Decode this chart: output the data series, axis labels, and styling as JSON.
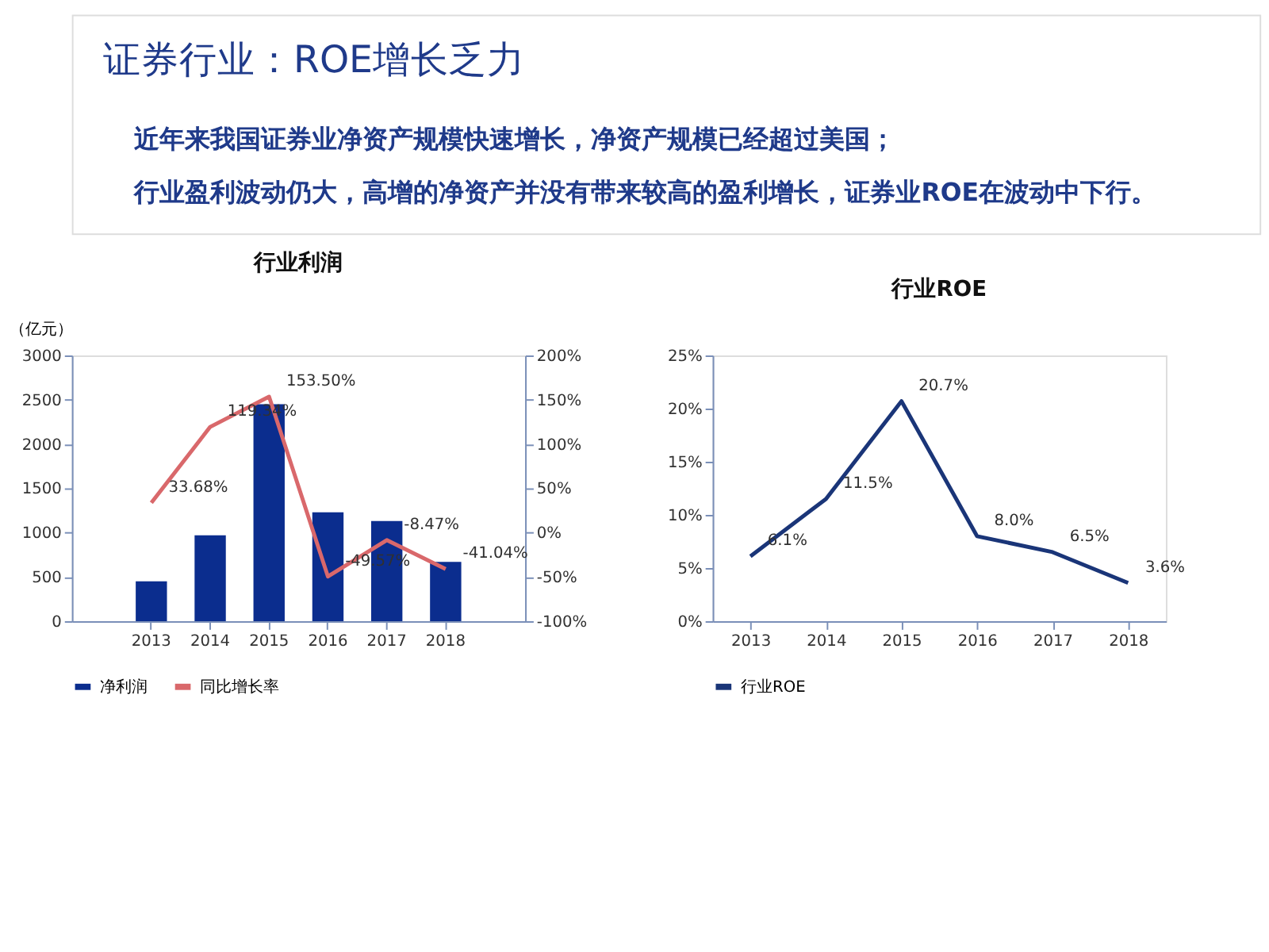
{
  "chart_data": [
    {
      "type": "other",
      "title": "证券行业：ROE增长乏力",
      "annotations": [
        "近年来我国证券业净资产规模快速增长，净资产规模已经超过美国；",
        "行业盈利波动仍大，高增的净资产并没有带来较高的盈利增长，证券业ROE在波动中下行。"
      ]
    },
    {
      "type": "bar",
      "title": "行业利润",
      "ylabel": "（亿元）",
      "categories": [
        "2013",
        "2014",
        "2015",
        "2016",
        "2017",
        "2018"
      ],
      "ylim": [
        0,
        3000
      ],
      "yticks": [
        0,
        500,
        1000,
        1500,
        2000,
        2500,
        3000
      ],
      "y2lim": [
        -100,
        200
      ],
      "y2ticks": [
        {
          "value": -100,
          "label": "-100%"
        },
        {
          "value": -50,
          "label": "-50%"
        },
        {
          "value": 0,
          "label": "0%"
        },
        {
          "value": 50,
          "label": "50%"
        },
        {
          "value": 100,
          "label": "100%"
        },
        {
          "value": 150,
          "label": "150%"
        },
        {
          "value": 200,
          "label": "200%"
        }
      ],
      "legend": "bottom",
      "series": [
        {
          "name": "净利润",
          "type": "bar",
          "color": "#0b2d8e",
          "values": [
            450,
            970,
            2450,
            1230,
            1130,
            670
          ]
        },
        {
          "name": "同比增长率",
          "type": "line",
          "axis": "y2",
          "color": "#d9686b",
          "values": [
            33.68,
            119.34,
            153.5,
            -49.57,
            -8.47,
            -41.04
          ],
          "value_labels": [
            "33.68%",
            "119.34%",
            "153.50%",
            "-49.57%",
            "-8.47%",
            "-41.04%"
          ]
        }
      ]
    },
    {
      "type": "line",
      "title": "行业ROE",
      "categories": [
        "2013",
        "2014",
        "2015",
        "2016",
        "2017",
        "2018"
      ],
      "ylim": [
        0,
        25
      ],
      "yticks": [
        {
          "value": 0,
          "label": "0%"
        },
        {
          "value": 5,
          "label": "5%"
        },
        {
          "value": 10,
          "label": "10%"
        },
        {
          "value": 15,
          "label": "15%"
        },
        {
          "value": 20,
          "label": "20%"
        },
        {
          "value": 25,
          "label": "25%"
        }
      ],
      "legend": "bottom",
      "series": [
        {
          "name": "行业ROE",
          "color": "#1a3578",
          "values": [
            6.1,
            11.5,
            20.7,
            8.0,
            6.5,
            3.6
          ],
          "value_labels": [
            "6.1%",
            "11.5%",
            "20.7%",
            "8.0%",
            "6.5%",
            "3.6%"
          ]
        }
      ]
    }
  ]
}
